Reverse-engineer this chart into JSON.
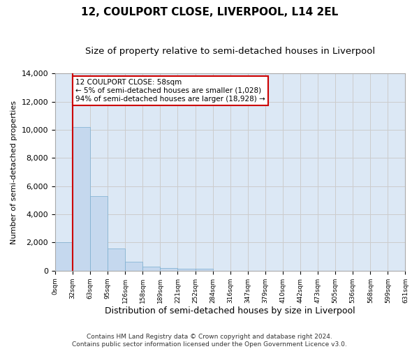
{
  "title": "12, COULPORT CLOSE, LIVERPOOL, L14 2EL",
  "subtitle": "Size of property relative to semi-detached houses in Liverpool",
  "xlabel": "Distribution of semi-detached houses by size in Liverpool",
  "ylabel": "Number of semi-detached properties",
  "bar_values": [
    2000,
    10200,
    5300,
    1600,
    620,
    290,
    200,
    160,
    130,
    0,
    0,
    0,
    0,
    0,
    0,
    0,
    0,
    0,
    0,
    0
  ],
  "bar_color": "#c5d8ee",
  "bar_edge_color": "#7aaed0",
  "x_labels": [
    "0sqm",
    "32sqm",
    "63sqm",
    "95sqm",
    "126sqm",
    "158sqm",
    "189sqm",
    "221sqm",
    "252sqm",
    "284sqm",
    "316sqm",
    "347sqm",
    "379sqm",
    "410sqm",
    "442sqm",
    "473sqm",
    "505sqm",
    "536sqm",
    "568sqm",
    "599sqm",
    "631sqm"
  ],
  "ylim": [
    0,
    14000
  ],
  "yticks": [
    0,
    2000,
    4000,
    6000,
    8000,
    10000,
    12000,
    14000
  ],
  "property_line_x": 1,
  "annotation_text": "12 COULPORT CLOSE: 58sqm\n← 5% of semi-detached houses are smaller (1,028)\n94% of semi-detached houses are larger (18,928) →",
  "annotation_box_color": "#ffffff",
  "annotation_box_edge": "#cc0000",
  "property_line_color": "#cc0000",
  "grid_color": "#cccccc",
  "bg_color": "#dce8f5",
  "footer": "Contains HM Land Registry data © Crown copyright and database right 2024.\nContains public sector information licensed under the Open Government Licence v3.0.",
  "title_fontsize": 11,
  "subtitle_fontsize": 9.5,
  "xlabel_fontsize": 9,
  "ylabel_fontsize": 8,
  "footer_fontsize": 6.5,
  "tick_label_fontsize": 6.5
}
